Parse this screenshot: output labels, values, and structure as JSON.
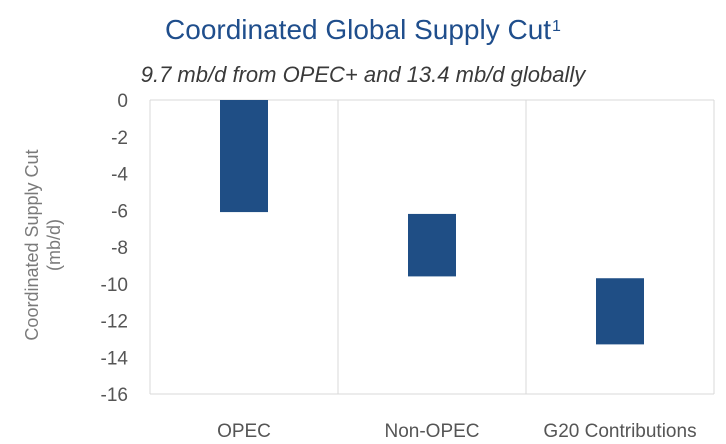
{
  "chart_data": {
    "type": "bar",
    "title": "Coordinated Global Supply Cut",
    "title_superscript": "1",
    "subtitle": "9.7 mb/d from OPEC+ and 13.4 mb/d globally",
    "ylabel": [
      "Coordinated Supply Cut",
      "(mb/d)"
    ],
    "categories": [
      "OPEC",
      "Non-OPEC",
      "G20 Contributions"
    ],
    "bars": [
      {
        "category": "OPEC",
        "start": 0,
        "end": -6.1
      },
      {
        "category": "Non-OPEC",
        "start": -6.2,
        "end": -9.6
      },
      {
        "category": "G20 Contributions",
        "start": -9.7,
        "end": -13.3
      }
    ],
    "ylim": [
      -16,
      0
    ],
    "yticks": [
      "0",
      "-2",
      "-4",
      "-6",
      "-8",
      "-10",
      "-12",
      "-14",
      "-16"
    ],
    "ytick_values": [
      0,
      -2,
      -4,
      -6,
      -8,
      -10,
      -12,
      -14,
      -16
    ],
    "grid": "vertical category separators",
    "bar_color": "#1f4e85"
  }
}
